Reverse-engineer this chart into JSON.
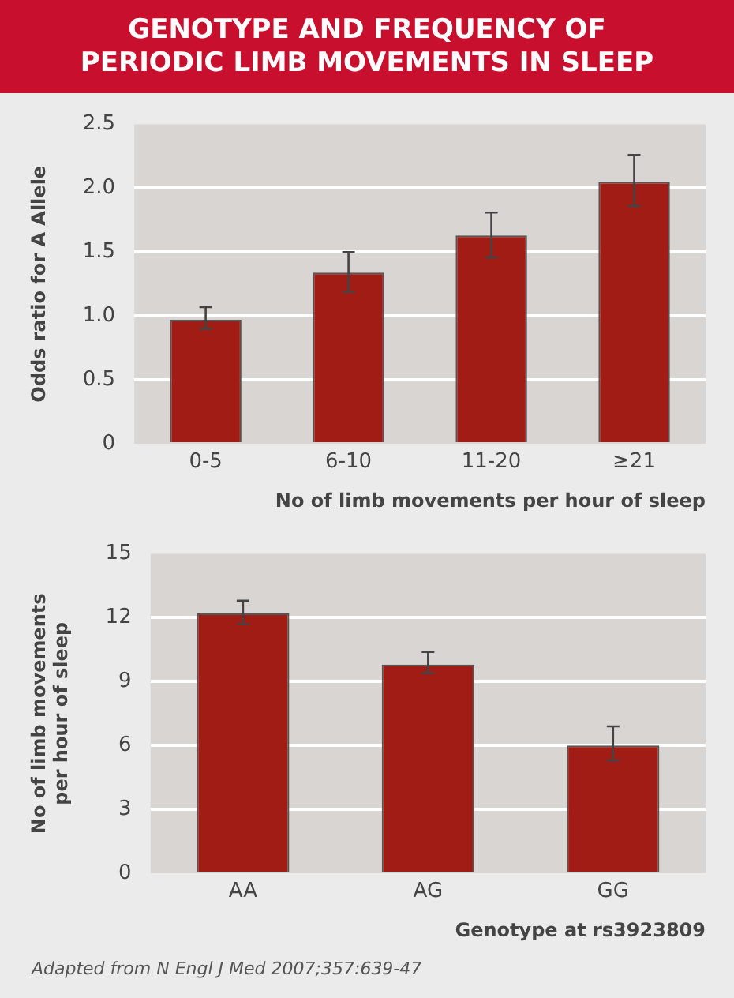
{
  "chart_data": [
    {
      "type": "bar",
      "title": "GENOTYPE AND FREQUENCY OF PERIODIC LIMB MOVEMENTS IN SLEEP",
      "ylabel": "Odds ratio for A Allele",
      "xlabel": "No of limb movements per hour of sleep",
      "categories": [
        "0-5",
        "6-10",
        "11-20",
        "≥21"
      ],
      "values": [
        0.97,
        1.34,
        1.63,
        2.05
      ],
      "errors": [
        [
          0.9,
          1.07
        ],
        [
          1.19,
          1.5
        ],
        [
          1.46,
          1.81
        ],
        [
          1.86,
          2.26
        ]
      ],
      "color": "#a01c14",
      "ylim": [
        0,
        2.5
      ],
      "yticks": [
        0,
        0.5,
        {
          "value": 1,
          "label": "1.0"
        },
        1.5,
        {
          "value": 2,
          "label": "2.0"
        },
        2.5
      ],
      "grid": "y",
      "legend": false
    },
    {
      "type": "bar",
      "ylabel": "No of limb movements per hour of sleep",
      "xlabel": "Genotype at rs3923809",
      "categories": [
        "AA",
        "AG",
        "GG"
      ],
      "values": [
        12.2,
        9.8,
        6.0
      ],
      "errors": [
        [
          11.7,
          12.8
        ],
        [
          9.4,
          10.4
        ],
        [
          5.3,
          6.9
        ]
      ],
      "color": "#a01c14",
      "ylim": [
        0,
        15
      ],
      "yticks": [
        0,
        3,
        6,
        9,
        12,
        15
      ],
      "grid": "y",
      "legend": false,
      "annotations": [
        "Adapted from N Engl J Med 2007;357:639-47"
      ]
    }
  ]
}
